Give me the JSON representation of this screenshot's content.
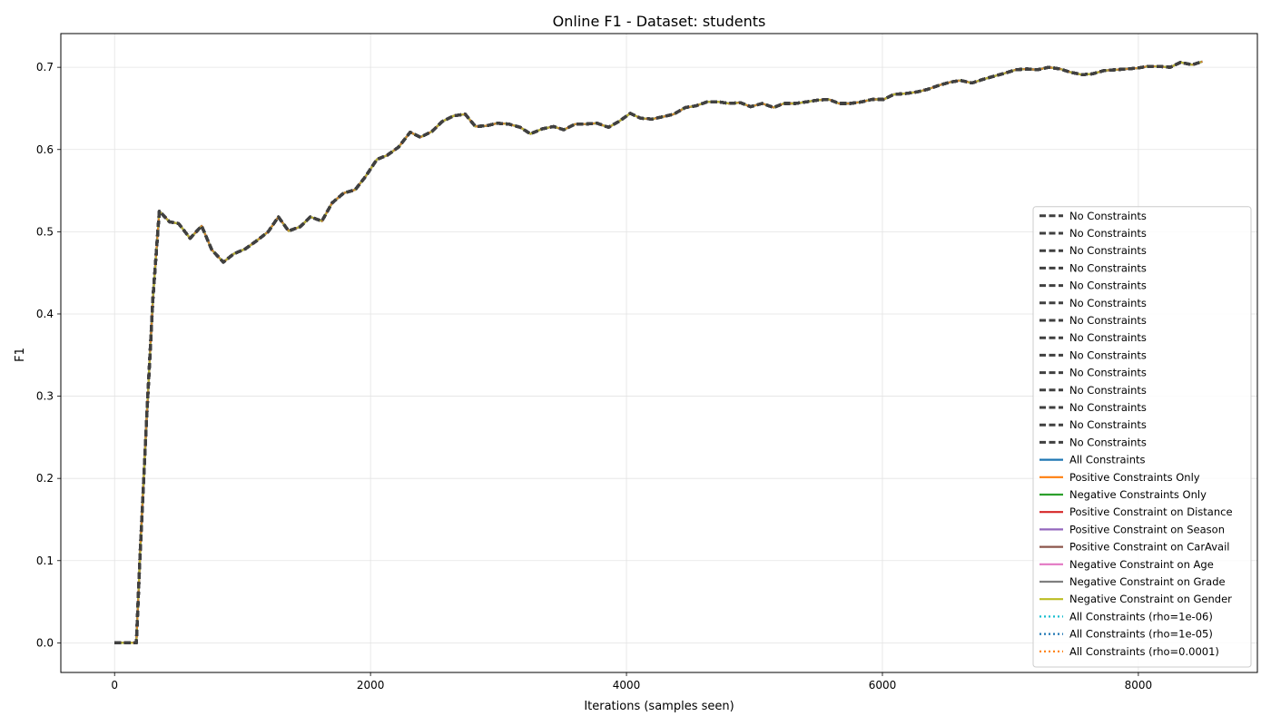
{
  "chart_data": {
    "type": "line",
    "title": "Online F1 - Dataset: students",
    "xlabel": "Iterations (samples seen)",
    "ylabel": "F1",
    "xlim": [
      -420,
      8930
    ],
    "ylim": [
      -0.036,
      0.741
    ],
    "xticks": [
      0,
      2000,
      4000,
      6000,
      8000
    ],
    "xtick_labels": [
      "0",
      "2000",
      "4000",
      "6000",
      "8000"
    ],
    "yticks": [
      0.0,
      0.1,
      0.2,
      0.3,
      0.4,
      0.5,
      0.6,
      0.7
    ],
    "ytick_labels": [
      "0.0",
      "0.1",
      "0.2",
      "0.3",
      "0.4",
      "0.5",
      "0.6",
      "0.7"
    ],
    "grid": true,
    "legend_position": "lower right",
    "x": [
      0,
      85,
      170,
      200,
      250,
      300,
      350,
      430,
      500,
      590,
      680,
      760,
      850,
      930,
      1020,
      1110,
      1200,
      1280,
      1360,
      1450,
      1530,
      1620,
      1700,
      1790,
      1880,
      1960,
      2050,
      2130,
      2220,
      2310,
      2390,
      2480,
      2560,
      2650,
      2740,
      2820,
      2910,
      2990,
      3080,
      3170,
      3250,
      3340,
      3430,
      3510,
      3600,
      3680,
      3770,
      3860,
      3940,
      4030,
      4110,
      4200,
      4290,
      4370,
      4460,
      4540,
      4630,
      4720,
      4800,
      4890,
      4970,
      5060,
      5150,
      5230,
      5320,
      5410,
      5490,
      5580,
      5660,
      5750,
      5840,
      5920,
      6010,
      6090,
      6180,
      6270,
      6350,
      6440,
      6530,
      6610,
      6700,
      6780,
      6870,
      6960,
      7040,
      7130,
      7210,
      7300,
      7390,
      7470,
      7560,
      7640,
      7730,
      7820,
      7900,
      7990,
      8070,
      8160,
      8250,
      8330,
      8420,
      8500
    ],
    "y": [
      0.0,
      0.0,
      0.0,
      0.11,
      0.27,
      0.42,
      0.525,
      0.512,
      0.51,
      0.492,
      0.507,
      0.478,
      0.463,
      0.473,
      0.479,
      0.489,
      0.5,
      0.518,
      0.501,
      0.506,
      0.518,
      0.513,
      0.535,
      0.547,
      0.551,
      0.567,
      0.588,
      0.593,
      0.603,
      0.621,
      0.615,
      0.622,
      0.634,
      0.641,
      0.643,
      0.628,
      0.629,
      0.632,
      0.631,
      0.627,
      0.619,
      0.625,
      0.628,
      0.624,
      0.631,
      0.631,
      0.632,
      0.627,
      0.634,
      0.644,
      0.638,
      0.637,
      0.64,
      0.643,
      0.651,
      0.653,
      0.658,
      0.658,
      0.656,
      0.657,
      0.652,
      0.656,
      0.651,
      0.656,
      0.656,
      0.658,
      0.66,
      0.661,
      0.656,
      0.656,
      0.658,
      0.661,
      0.661,
      0.667,
      0.668,
      0.67,
      0.673,
      0.678,
      0.682,
      0.684,
      0.681,
      0.685,
      0.689,
      0.693,
      0.697,
      0.698,
      0.697,
      0.7,
      0.698,
      0.694,
      0.691,
      0.692,
      0.696,
      0.697,
      0.698,
      0.699,
      0.701,
      0.701,
      0.7,
      0.706,
      0.703,
      0.707
    ],
    "series": [
      {
        "name": "No Constraints",
        "color": "#404040",
        "style": "dashed"
      },
      {
        "name": "No Constraints",
        "color": "#404040",
        "style": "dashed"
      },
      {
        "name": "No Constraints",
        "color": "#404040",
        "style": "dashed"
      },
      {
        "name": "No Constraints",
        "color": "#404040",
        "style": "dashed"
      },
      {
        "name": "No Constraints",
        "color": "#404040",
        "style": "dashed"
      },
      {
        "name": "No Constraints",
        "color": "#404040",
        "style": "dashed"
      },
      {
        "name": "No Constraints",
        "color": "#404040",
        "style": "dashed"
      },
      {
        "name": "No Constraints",
        "color": "#404040",
        "style": "dashed"
      },
      {
        "name": "No Constraints",
        "color": "#404040",
        "style": "dashed"
      },
      {
        "name": "No Constraints",
        "color": "#404040",
        "style": "dashed"
      },
      {
        "name": "No Constraints",
        "color": "#404040",
        "style": "dashed"
      },
      {
        "name": "No Constraints",
        "color": "#404040",
        "style": "dashed"
      },
      {
        "name": "No Constraints",
        "color": "#404040",
        "style": "dashed"
      },
      {
        "name": "No Constraints",
        "color": "#404040",
        "style": "dashed"
      },
      {
        "name": "All Constraints",
        "color": "#1f77b4",
        "style": "solid"
      },
      {
        "name": "Positive Constraints Only",
        "color": "#ff7f0e",
        "style": "solid"
      },
      {
        "name": "Negative Constraints Only",
        "color": "#2ca02c",
        "style": "solid"
      },
      {
        "name": "Positive Constraint on Distance",
        "color": "#d62728",
        "style": "solid"
      },
      {
        "name": "Positive Constraint on Season",
        "color": "#9467bd",
        "style": "solid"
      },
      {
        "name": "Positive Constraint on CarAvail",
        "color": "#8c564b",
        "style": "solid"
      },
      {
        "name": "Negative Constraint on Age",
        "color": "#e377c2",
        "style": "solid"
      },
      {
        "name": "Negative Constraint on Grade",
        "color": "#7f7f7f",
        "style": "solid"
      },
      {
        "name": "Negative Constraint on Gender",
        "color": "#bcbd22",
        "style": "solid"
      },
      {
        "name": "All Constraints (rho=1e-06)",
        "color": "#17becf",
        "style": "dotted"
      },
      {
        "name": "All Constraints (rho=1e-05)",
        "color": "#1f77b4",
        "style": "dotted"
      },
      {
        "name": "All Constraints (rho=0.0001)",
        "color": "#ff7f0e",
        "style": "dotted"
      }
    ]
  }
}
